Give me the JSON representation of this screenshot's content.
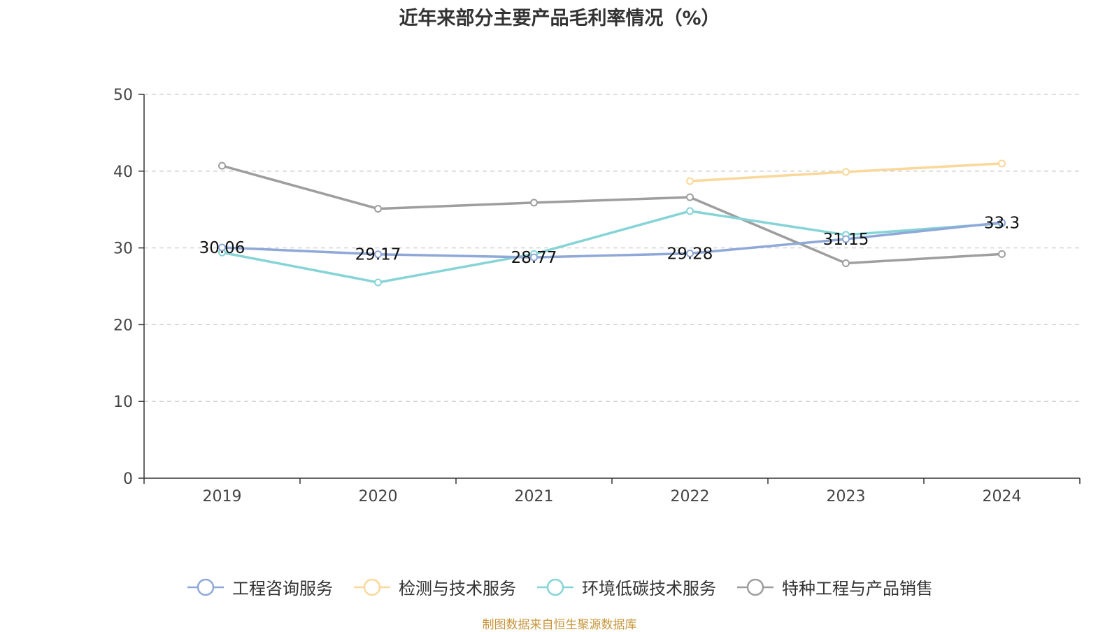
{
  "chart_data": {
    "type": "line",
    "title": "近年来部分主要产品毛利率情况（%）",
    "xlabel": "",
    "ylabel": "",
    "categories": [
      "2019",
      "2020",
      "2021",
      "2022",
      "2023",
      "2024"
    ],
    "ylim": [
      0,
      50
    ],
    "yticks": [
      0,
      10,
      20,
      30,
      40,
      50
    ],
    "grid": true,
    "legend_position": "bottom",
    "series": [
      {
        "name": "工程咨询服务",
        "color": "#8fa8d8",
        "values": [
          30.06,
          29.17,
          28.77,
          29.28,
          31.15,
          33.3
        ],
        "labels": [
          "30.06",
          "29.17",
          "28.77",
          "29.28",
          "31.15",
          "33.3"
        ]
      },
      {
        "name": "检测与技术服务",
        "color": "#f9d89a",
        "values": [
          null,
          null,
          null,
          38.7,
          39.9,
          41.0
        ]
      },
      {
        "name": "环境低碳技术服务",
        "color": "#86d4d6",
        "values": [
          29.4,
          25.5,
          29.2,
          34.8,
          31.7,
          33.2
        ]
      },
      {
        "name": "特种工程与产品销售",
        "color": "#9e9e9e",
        "values": [
          40.7,
          35.1,
          35.9,
          36.6,
          28.0,
          29.2
        ]
      }
    ]
  },
  "source": "制图数据来自恒生聚源数据库"
}
